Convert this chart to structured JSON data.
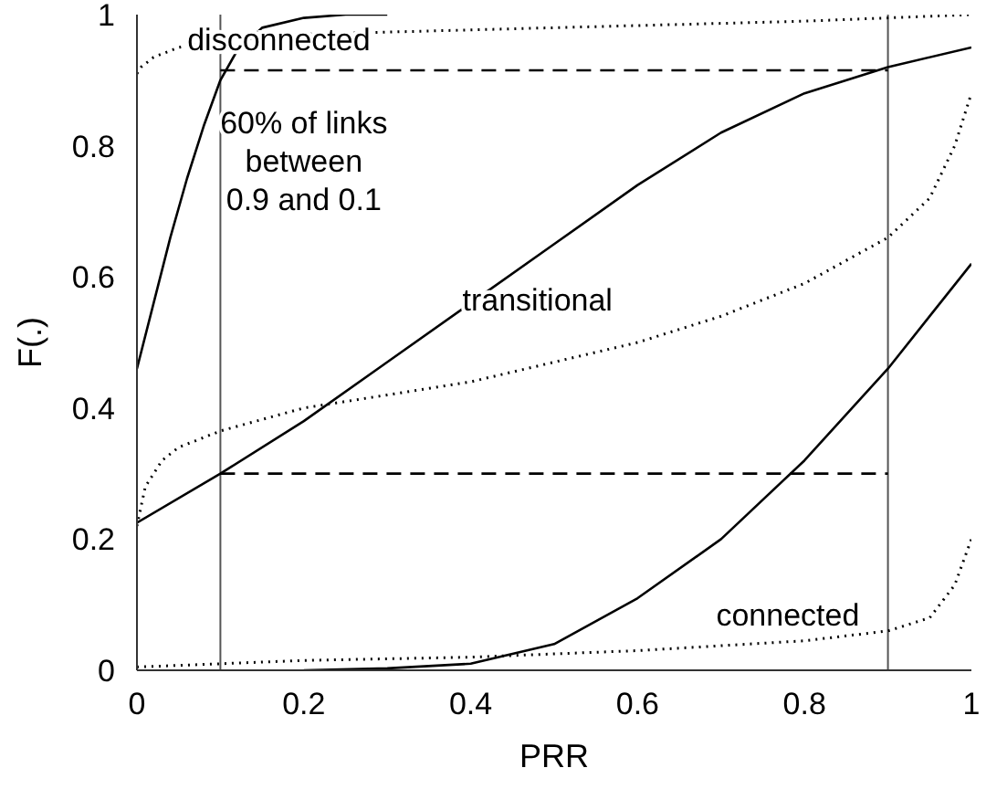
{
  "chart_data": {
    "type": "line",
    "xlabel": "PRR",
    "ylabel": "F(.)",
    "xlim": [
      0,
      1
    ],
    "xticks": [
      0,
      0.2,
      0.4,
      0.6,
      0.8,
      1
    ],
    "ylim": [
      0,
      1
    ],
    "yticks": [
      0,
      0.2,
      0.4,
      0.6,
      0.8,
      1
    ],
    "marker": "none",
    "series": [
      {
        "color": "#000000",
        "line_style": "solid",
        "x": [
          0,
          0.02,
          0.04,
          0.06,
          0.08,
          0.1,
          0.12,
          0.15,
          0.2,
          0.25,
          0.3
        ],
        "values": [
          0.46,
          0.56,
          0.66,
          0.75,
          0.83,
          0.9,
          0.945,
          0.98,
          0.995,
          1,
          1
        ]
      },
      {
        "color": "#000000",
        "line_style": "dotted",
        "x": [
          0,
          0.005,
          0.02,
          0.05,
          0.1,
          0.2,
          0.35,
          0.5,
          0.65,
          0.8,
          0.9,
          1
        ],
        "values": [
          0.91,
          0.92,
          0.935,
          0.95,
          0.96,
          0.97,
          0.975,
          0.98,
          0.985,
          0.99,
          0.995,
          1
        ]
      },
      {
        "color": "#000000",
        "line_style": "solid",
        "x": [
          0,
          0.1,
          0.2,
          0.3,
          0.4,
          0.5,
          0.6,
          0.7,
          0.8,
          0.9,
          1
        ],
        "values": [
          0.225,
          0.3,
          0.38,
          0.47,
          0.56,
          0.65,
          0.74,
          0.82,
          0.88,
          0.92,
          0.95
        ]
      },
      {
        "color": "#000000",
        "line_style": "dotted",
        "x": [
          0,
          0.01,
          0.03,
          0.05,
          0.1,
          0.2,
          0.3,
          0.4,
          0.5,
          0.6,
          0.7,
          0.8,
          0.9,
          0.95,
          0.98,
          1
        ],
        "values": [
          0.22,
          0.28,
          0.32,
          0.34,
          0.365,
          0.4,
          0.42,
          0.44,
          0.47,
          0.5,
          0.54,
          0.59,
          0.66,
          0.72,
          0.8,
          0.88
        ]
      },
      {
        "color": "#000000",
        "line_style": "solid",
        "x": [
          0.2,
          0.3,
          0.4,
          0.5,
          0.6,
          0.7,
          0.8,
          0.9,
          1
        ],
        "values": [
          0,
          0.003,
          0.01,
          0.04,
          0.11,
          0.2,
          0.32,
          0.46,
          0.62
        ]
      },
      {
        "color": "#000000",
        "line_style": "dotted",
        "x": [
          0,
          0.2,
          0.4,
          0.6,
          0.8,
          0.9,
          0.95,
          0.98,
          1
        ],
        "values": [
          0.005,
          0.015,
          0.02,
          0.03,
          0.045,
          0.06,
          0.08,
          0.13,
          0.2
        ]
      },
      {
        "color": "#000000",
        "line_style": "dashed",
        "x": [
          0.1,
          0.9
        ],
        "values": [
          0.915,
          0.915
        ]
      },
      {
        "color": "#000000",
        "line_style": "dashed",
        "x": [
          0.1,
          0.9
        ],
        "values": [
          0.3,
          0.3
        ]
      }
    ],
    "ref_lines": [
      {
        "axis": "x",
        "value": 0.1,
        "color": "#555555"
      },
      {
        "axis": "x",
        "value": 0.9,
        "color": "#555555"
      }
    ],
    "annotations": [
      "disconnected",
      "60% of links\nbetween\n0.9 and 0.1",
      "transitional",
      "connected"
    ]
  }
}
